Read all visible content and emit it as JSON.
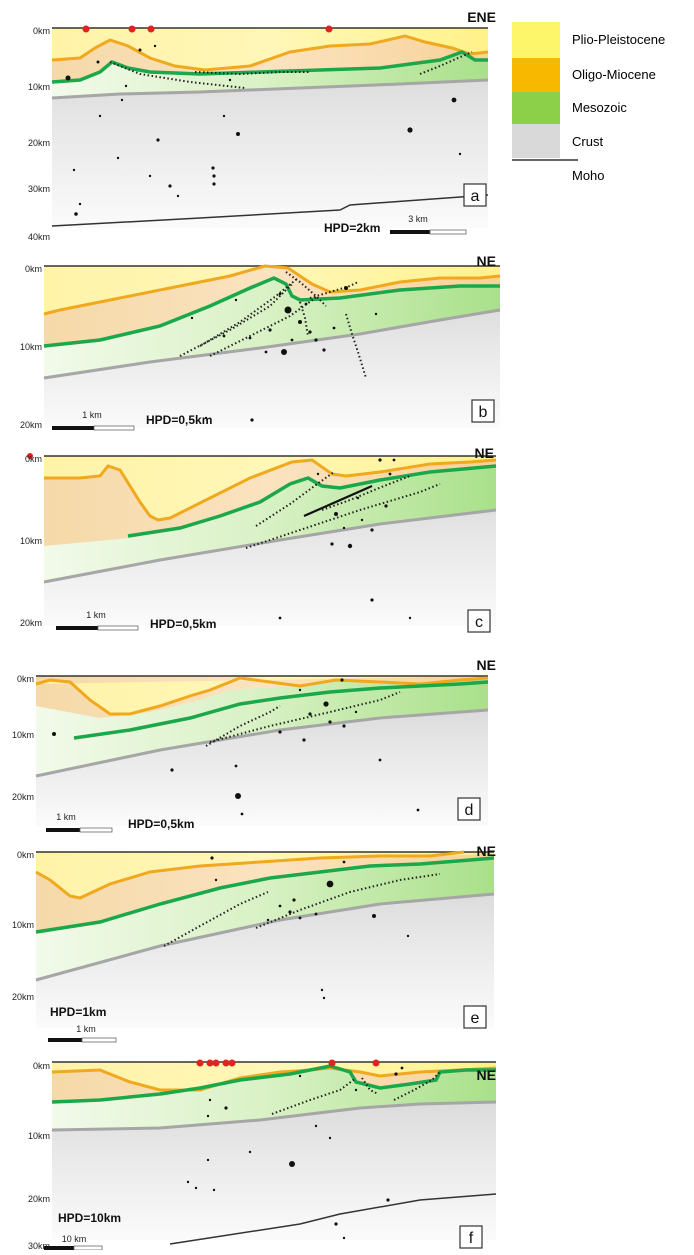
{
  "legend": {
    "items": [
      {
        "label": "Plio-Pleistocene",
        "color": "#fdf56a"
      },
      {
        "label": "Oligo-Miocene",
        "color": "#f9b800"
      },
      {
        "label": "Mesozoic",
        "color": "#8cd04a"
      },
      {
        "label": "Crust",
        "color": "#d9d9d9"
      }
    ],
    "moho_label": "Moho"
  },
  "colors": {
    "plio": "#fff59a",
    "oligo": "#f9c66e",
    "oligo_line": "#f0a81e",
    "meso": "#c8ecb0",
    "meso_line": "#1aa84b",
    "crust": "#e2e2e2",
    "crust_line": "#a6a6a6",
    "moho": "#333333",
    "station": "#e0231f",
    "quake": "#111111"
  },
  "panels": [
    {
      "id": "a",
      "letter": "a",
      "direction": "ENE",
      "hpd": "HPD=2km",
      "scale": "3 km",
      "depth_labels": [
        "0km",
        "10km",
        "20km",
        "30km",
        "40km"
      ]
    },
    {
      "id": "b",
      "letter": "b",
      "direction": "NE",
      "hpd": "HPD=0,5km",
      "scale": "1 km",
      "depth_labels": [
        "0km",
        "10km",
        "20km"
      ]
    },
    {
      "id": "c",
      "letter": "c",
      "direction": "NE",
      "hpd": "HPD=0,5km",
      "scale": "1 km",
      "depth_labels": [
        "0km",
        "10km",
        "20km"
      ]
    },
    {
      "id": "d",
      "letter": "d",
      "direction": "NE",
      "hpd": "HPD=0,5km",
      "scale": "1 km",
      "depth_labels": [
        "0km",
        "10km",
        "20km"
      ]
    },
    {
      "id": "e",
      "letter": "e",
      "direction": "NE",
      "hpd": "HPD=1km",
      "scale": "1 km",
      "depth_labels": [
        "0km",
        "10km",
        "20km"
      ]
    },
    {
      "id": "f",
      "letter": "f",
      "direction": "NE",
      "hpd": "HPD=10km",
      "scale": "10 km",
      "depth_labels": [
        "0km",
        "10km",
        "20km",
        "30km"
      ]
    }
  ]
}
